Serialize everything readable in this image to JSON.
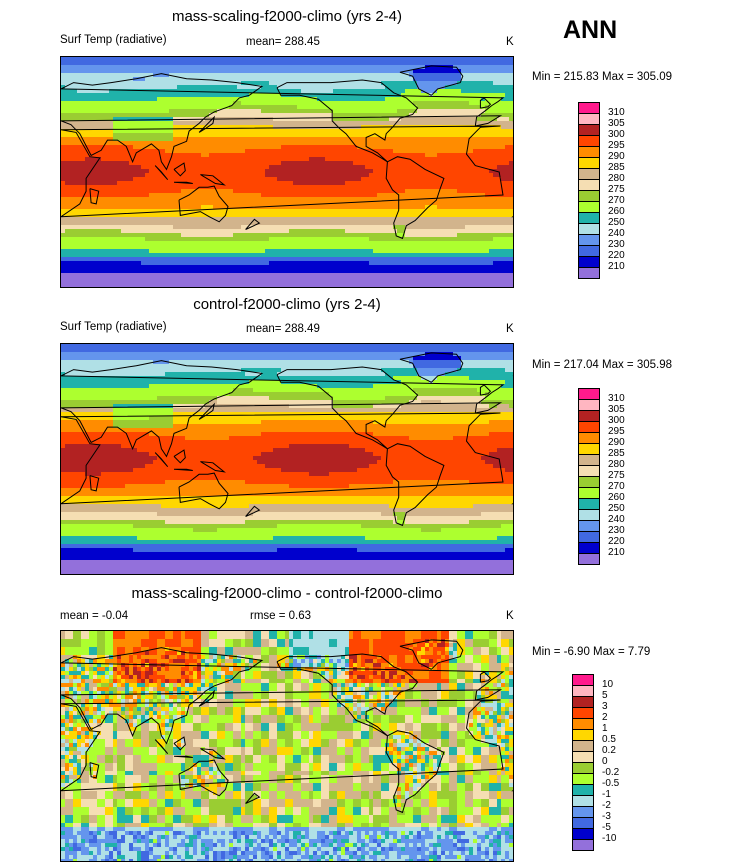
{
  "season": "ANN",
  "panels": [
    {
      "title": "mass-scaling-f2000-climo (yrs 2-4)",
      "left_label": "Surf Temp (radiative)",
      "center_label": "mean= 288.45",
      "units": "K",
      "minmax": "Min = 215.83 Max = 305.09"
    },
    {
      "title": "control-f2000-climo (yrs 2-4)",
      "left_label": "Surf Temp (radiative)",
      "center_label": "mean= 288.49",
      "units": "K",
      "minmax": "Min = 217.04 Max = 305.98"
    },
    {
      "title": "mass-scaling-f2000-climo - control-f2000-climo",
      "left_label": "mean =  -0.04",
      "center_label": "rmse =   0.63",
      "units": "K",
      "minmax": "Min =  -6.90 Max =   7.79"
    }
  ],
  "chart_data": [
    {
      "type": "heatmap",
      "title": "mass-scaling-f2000-climo (yrs 2-4)",
      "variable": "Surf Temp (radiative)",
      "units": "K",
      "mean": 288.45,
      "min": 215.83,
      "max": 305.09,
      "colorbar": {
        "levels": [
          "310",
          "305",
          "300",
          "295",
          "290",
          "285",
          "280",
          "275",
          "270",
          "260",
          "250",
          "240",
          "230",
          "220",
          "210"
        ],
        "colors": [
          "#ff1a8c",
          "#ffb6c1",
          "#b22222",
          "#ff4500",
          "#ff8c00",
          "#ffd700",
          "#d2b48c",
          "#f5deb3",
          "#9acd32",
          "#adff2f",
          "#20b2aa",
          "#b0e0e6",
          "#6495ed",
          "#4169e1",
          "#0000cd",
          "#9370db"
        ]
      }
    },
    {
      "type": "heatmap",
      "title": "control-f2000-climo (yrs 2-4)",
      "variable": "Surf Temp (radiative)",
      "units": "K",
      "mean": 288.49,
      "min": 217.04,
      "max": 305.98,
      "colorbar": {
        "levels": [
          "310",
          "305",
          "300",
          "295",
          "290",
          "285",
          "280",
          "275",
          "270",
          "260",
          "250",
          "240",
          "230",
          "220",
          "210"
        ],
        "colors": [
          "#ff1a8c",
          "#ffb6c1",
          "#b22222",
          "#ff4500",
          "#ff8c00",
          "#ffd700",
          "#d2b48c",
          "#f5deb3",
          "#9acd32",
          "#adff2f",
          "#20b2aa",
          "#b0e0e6",
          "#6495ed",
          "#4169e1",
          "#0000cd",
          "#9370db"
        ]
      }
    },
    {
      "type": "heatmap",
      "title": "mass-scaling-f2000-climo - control-f2000-climo",
      "units": "K",
      "mean": -0.04,
      "rmse": 0.63,
      "min": -6.9,
      "max": 7.79,
      "colorbar": {
        "levels": [
          "10",
          "5",
          "3",
          "2",
          "1",
          "0.5",
          "0.2",
          "0",
          "-0.2",
          "-0.5",
          "-1",
          "-2",
          "-3",
          "-5",
          "-10"
        ],
        "colors": [
          "#ff1a8c",
          "#ffb6c1",
          "#b22222",
          "#ff4500",
          "#ff8c00",
          "#ffd700",
          "#d2b48c",
          "#f5deb3",
          "#9acd32",
          "#adff2f",
          "#20b2aa",
          "#b0e0e6",
          "#6495ed",
          "#4169e1",
          "#0000cd",
          "#9370db"
        ]
      }
    }
  ]
}
